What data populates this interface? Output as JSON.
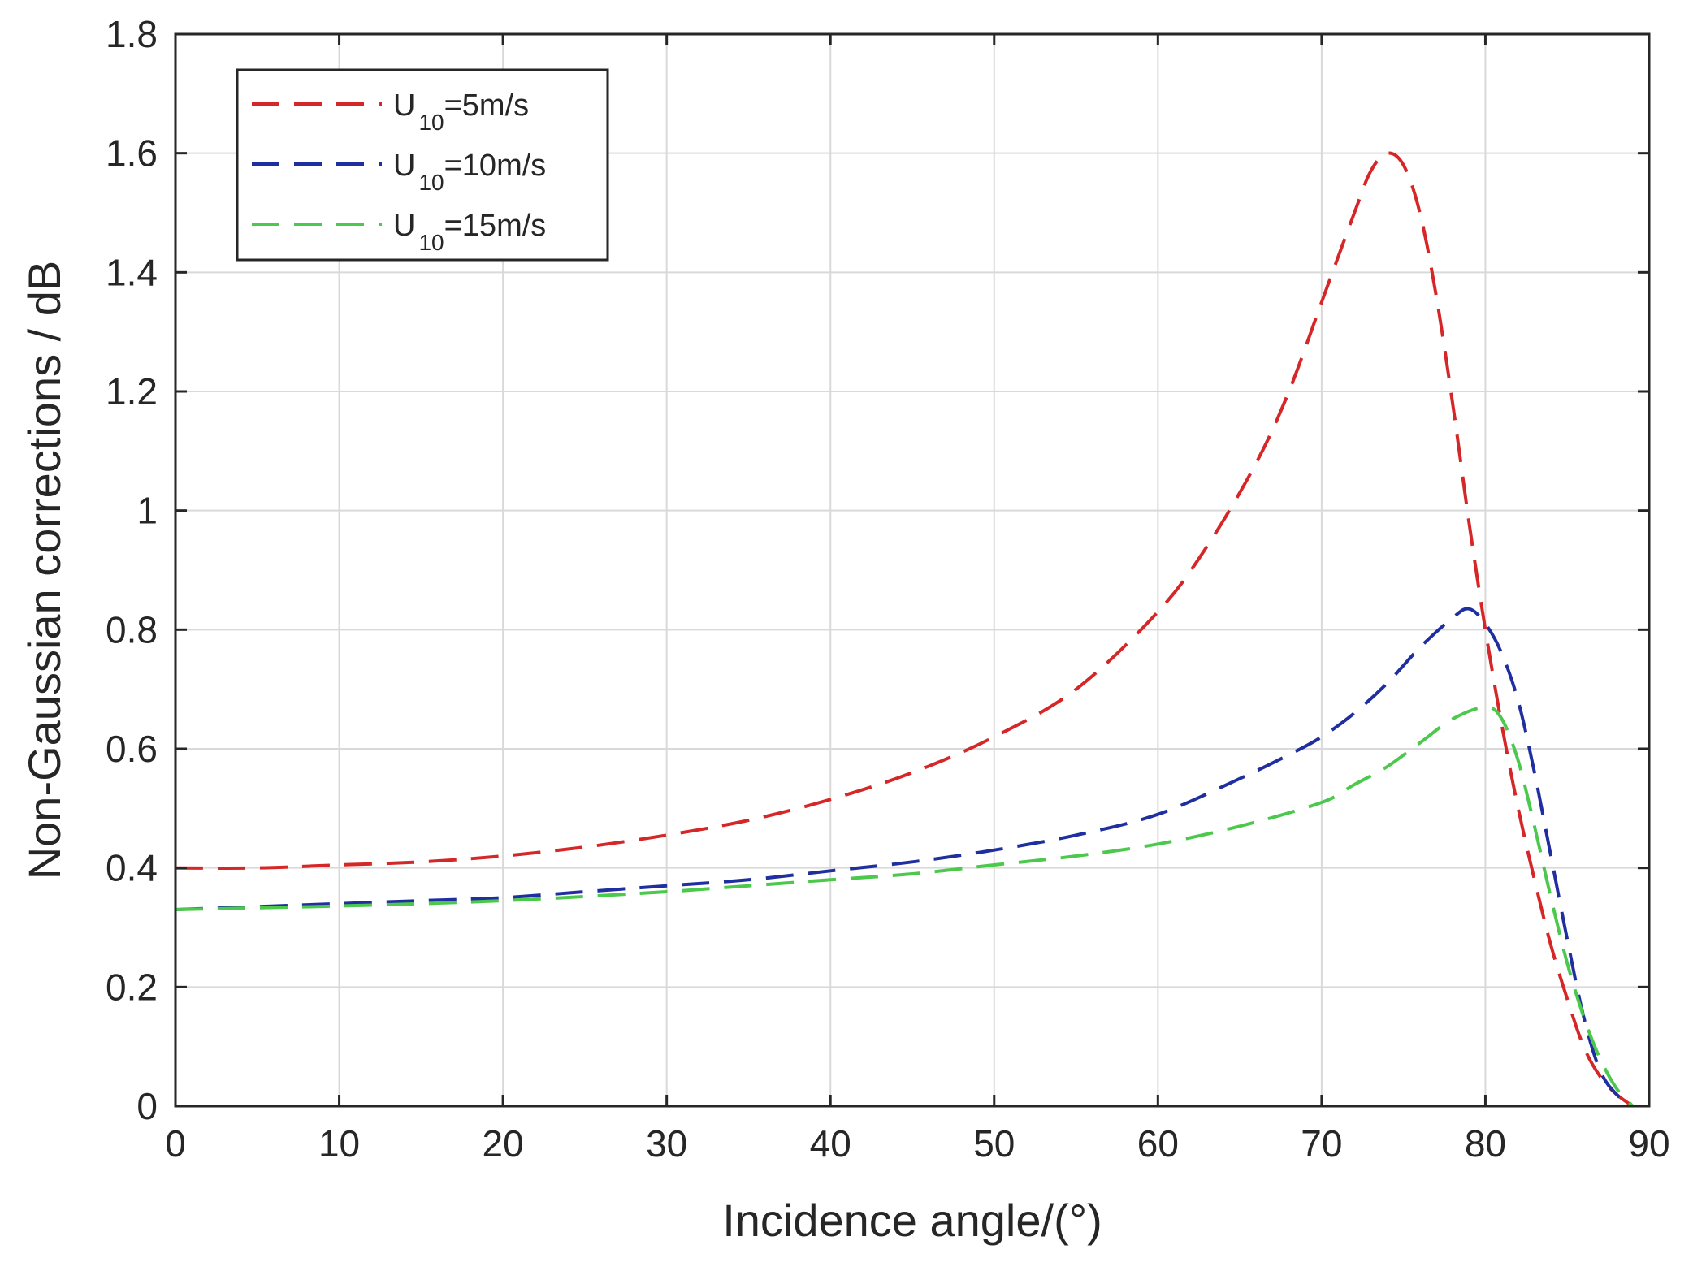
{
  "chart_data": {
    "type": "line",
    "title": "",
    "xlabel": "Incidence angle/(°)",
    "ylabel": "Non-Gaussian corrections / dB",
    "xlim": [
      0,
      90
    ],
    "ylim": [
      0,
      1.8
    ],
    "xticks": [
      0,
      10,
      20,
      30,
      40,
      50,
      60,
      70,
      80,
      90
    ],
    "yticks": [
      0,
      0.2,
      0.4,
      0.6,
      0.8,
      1,
      1.2,
      1.4,
      1.6,
      1.8
    ],
    "xtick_labels": [
      "0",
      "10",
      "20",
      "30",
      "40",
      "50",
      "60",
      "70",
      "80",
      "90"
    ],
    "ytick_labels": [
      "0",
      "0.2",
      "0.4",
      "0.6",
      "0.8",
      "1",
      "1.2",
      "1.4",
      "1.6",
      "1.8"
    ],
    "grid": true,
    "legend_position": "top-left",
    "series": [
      {
        "name": "U10=5m/s",
        "label_main": "U",
        "label_sub": "10",
        "label_rest": "=5m/s",
        "color": "#d62728",
        "style": "dashed",
        "x": [
          0,
          5,
          10,
          15,
          20,
          25,
          30,
          35,
          40,
          45,
          50,
          55,
          60,
          63,
          66,
          68,
          70,
          72,
          73,
          74,
          75,
          76,
          77,
          78,
          79,
          80,
          81,
          82,
          83,
          84,
          85,
          86,
          87,
          88,
          89
        ],
        "y": [
          0.4,
          0.4,
          0.405,
          0.41,
          0.42,
          0.435,
          0.455,
          0.48,
          0.515,
          0.56,
          0.62,
          0.7,
          0.83,
          0.94,
          1.08,
          1.2,
          1.35,
          1.5,
          1.57,
          1.6,
          1.58,
          1.5,
          1.36,
          1.18,
          0.98,
          0.8,
          0.64,
          0.5,
          0.38,
          0.27,
          0.18,
          0.1,
          0.05,
          0.02,
          0.0
        ]
      },
      {
        "name": "U10=10m/s",
        "label_main": "U",
        "label_sub": "10",
        "label_rest": "=10m/s",
        "color": "#1f2f9f",
        "style": "dashed",
        "x": [
          0,
          5,
          10,
          15,
          20,
          25,
          30,
          35,
          40,
          45,
          50,
          55,
          60,
          65,
          68,
          70,
          72,
          74,
          76,
          78,
          79,
          80,
          81,
          82,
          83,
          84,
          85,
          86,
          87,
          88,
          89
        ],
        "y": [
          0.33,
          0.335,
          0.34,
          0.345,
          0.35,
          0.36,
          0.37,
          0.38,
          0.395,
          0.41,
          0.43,
          0.455,
          0.49,
          0.55,
          0.59,
          0.62,
          0.66,
          0.71,
          0.77,
          0.82,
          0.835,
          0.81,
          0.76,
          0.68,
          0.56,
          0.42,
          0.28,
          0.15,
          0.06,
          0.02,
          0.0
        ]
      },
      {
        "name": "U10=15m/s",
        "label_main": "U",
        "label_sub": "10",
        "label_rest": "=15m/s",
        "color": "#4cc94c",
        "style": "dashed",
        "x": [
          0,
          5,
          10,
          15,
          20,
          25,
          30,
          35,
          40,
          45,
          50,
          55,
          60,
          65,
          70,
          72,
          74,
          76,
          78,
          80,
          81,
          82,
          83,
          84,
          85,
          86,
          87,
          88,
          89
        ],
        "y": [
          0.33,
          0.333,
          0.336,
          0.34,
          0.345,
          0.352,
          0.36,
          0.37,
          0.38,
          0.39,
          0.405,
          0.42,
          0.44,
          0.47,
          0.51,
          0.54,
          0.57,
          0.61,
          0.65,
          0.67,
          0.65,
          0.58,
          0.47,
          0.35,
          0.24,
          0.15,
          0.08,
          0.03,
          0.0
        ]
      }
    ]
  }
}
